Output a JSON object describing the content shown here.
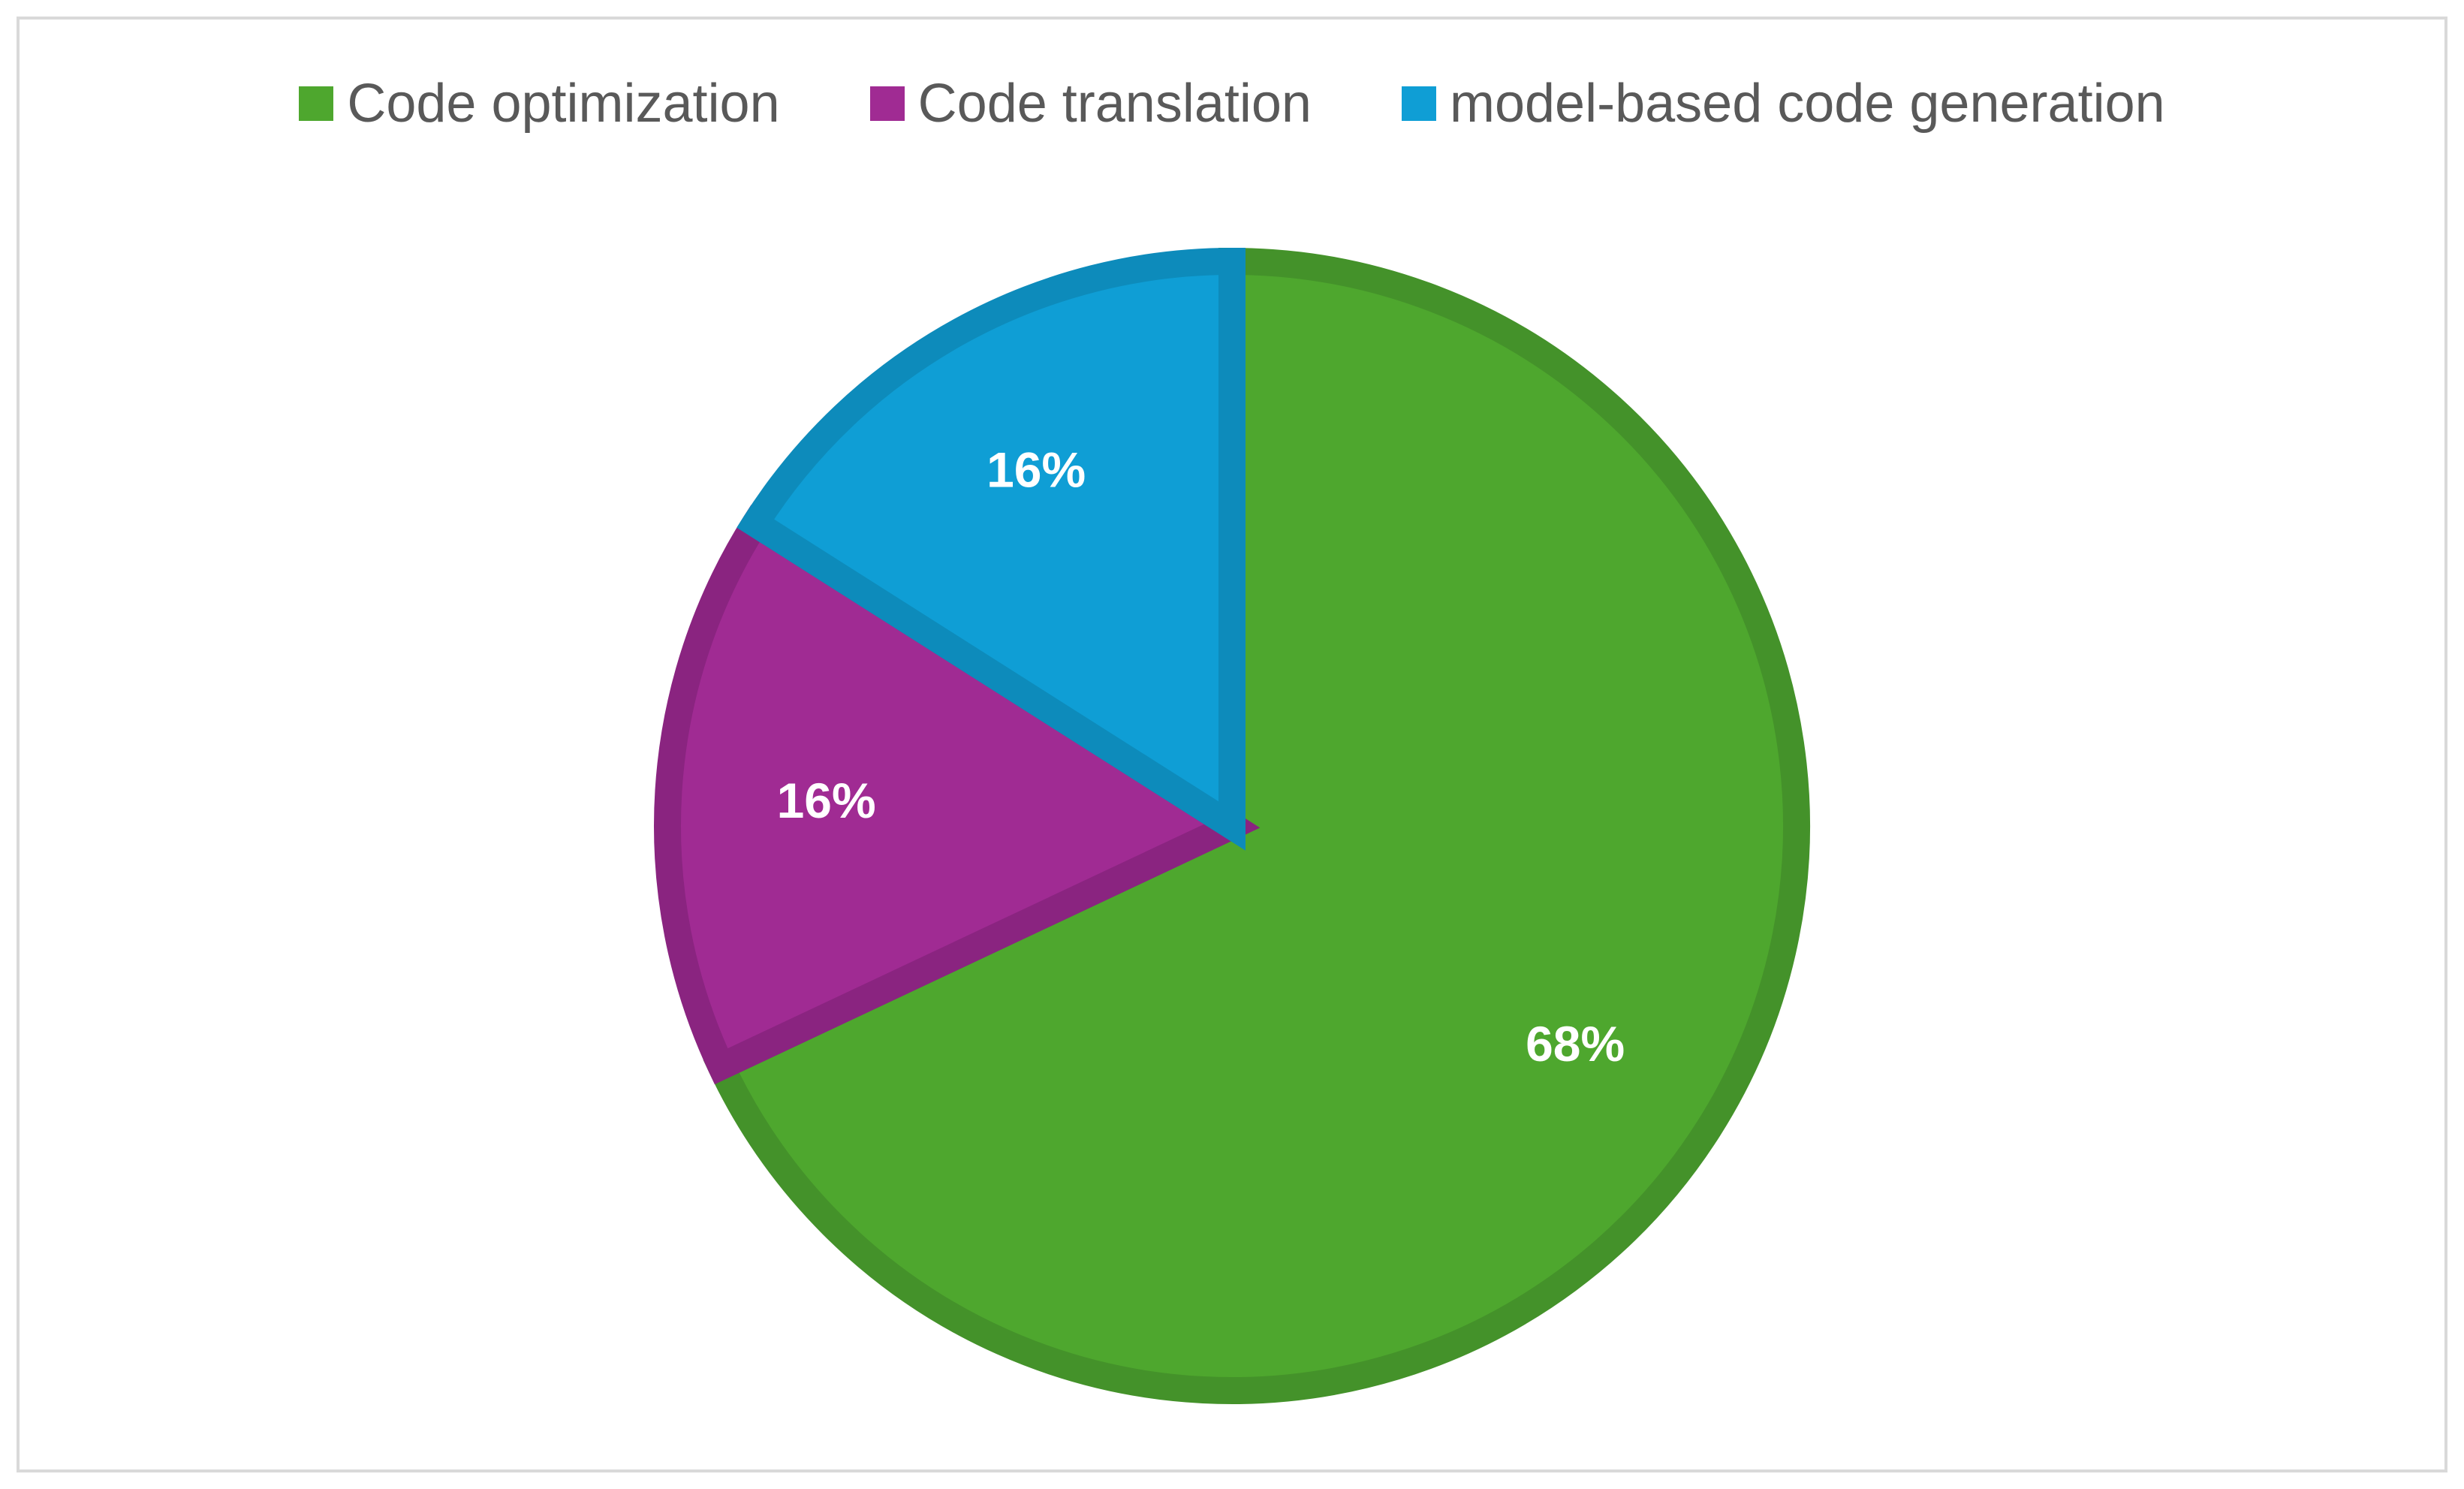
{
  "chart_data": {
    "type": "pie",
    "title": "",
    "legend_position": "top",
    "slices": [
      {
        "name": "Code optimization",
        "value": 68,
        "label": "68%",
        "color": "#4ea72e",
        "border": "#44922a"
      },
      {
        "name": "Code translation",
        "value": 16,
        "label": "16%",
        "color": "#a02b93",
        "border": "#8a2480"
      },
      {
        "name": "model-based code generation",
        "value": 16,
        "label": "16%",
        "color": "#0f9ed5",
        "border": "#0d8bbb"
      }
    ]
  }
}
